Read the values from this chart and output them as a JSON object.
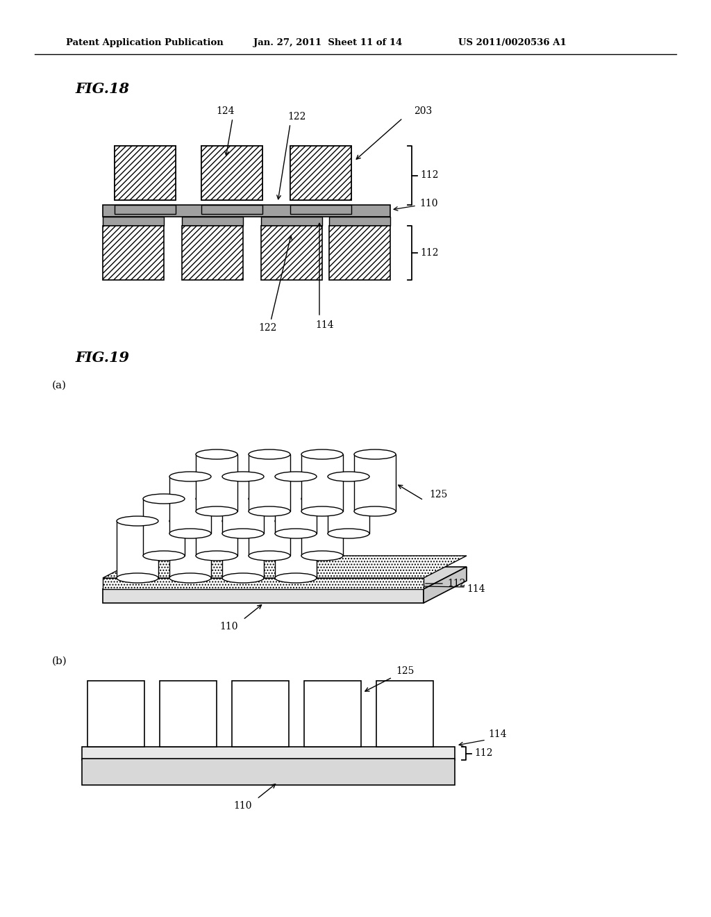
{
  "bg_color": "#ffffff",
  "header_text": "Patent Application Publication",
  "header_date": "Jan. 27, 2011  Sheet 11 of 14",
  "header_patent": "US 2011/0020536 A1",
  "fig18_title": "FIG.18",
  "fig19_title": "FIG.19",
  "label_a": "(a)",
  "label_b": "(b)",
  "hatch_pattern": "////",
  "labels": [
    "110",
    "112",
    "114",
    "122",
    "124",
    "125",
    "203"
  ]
}
